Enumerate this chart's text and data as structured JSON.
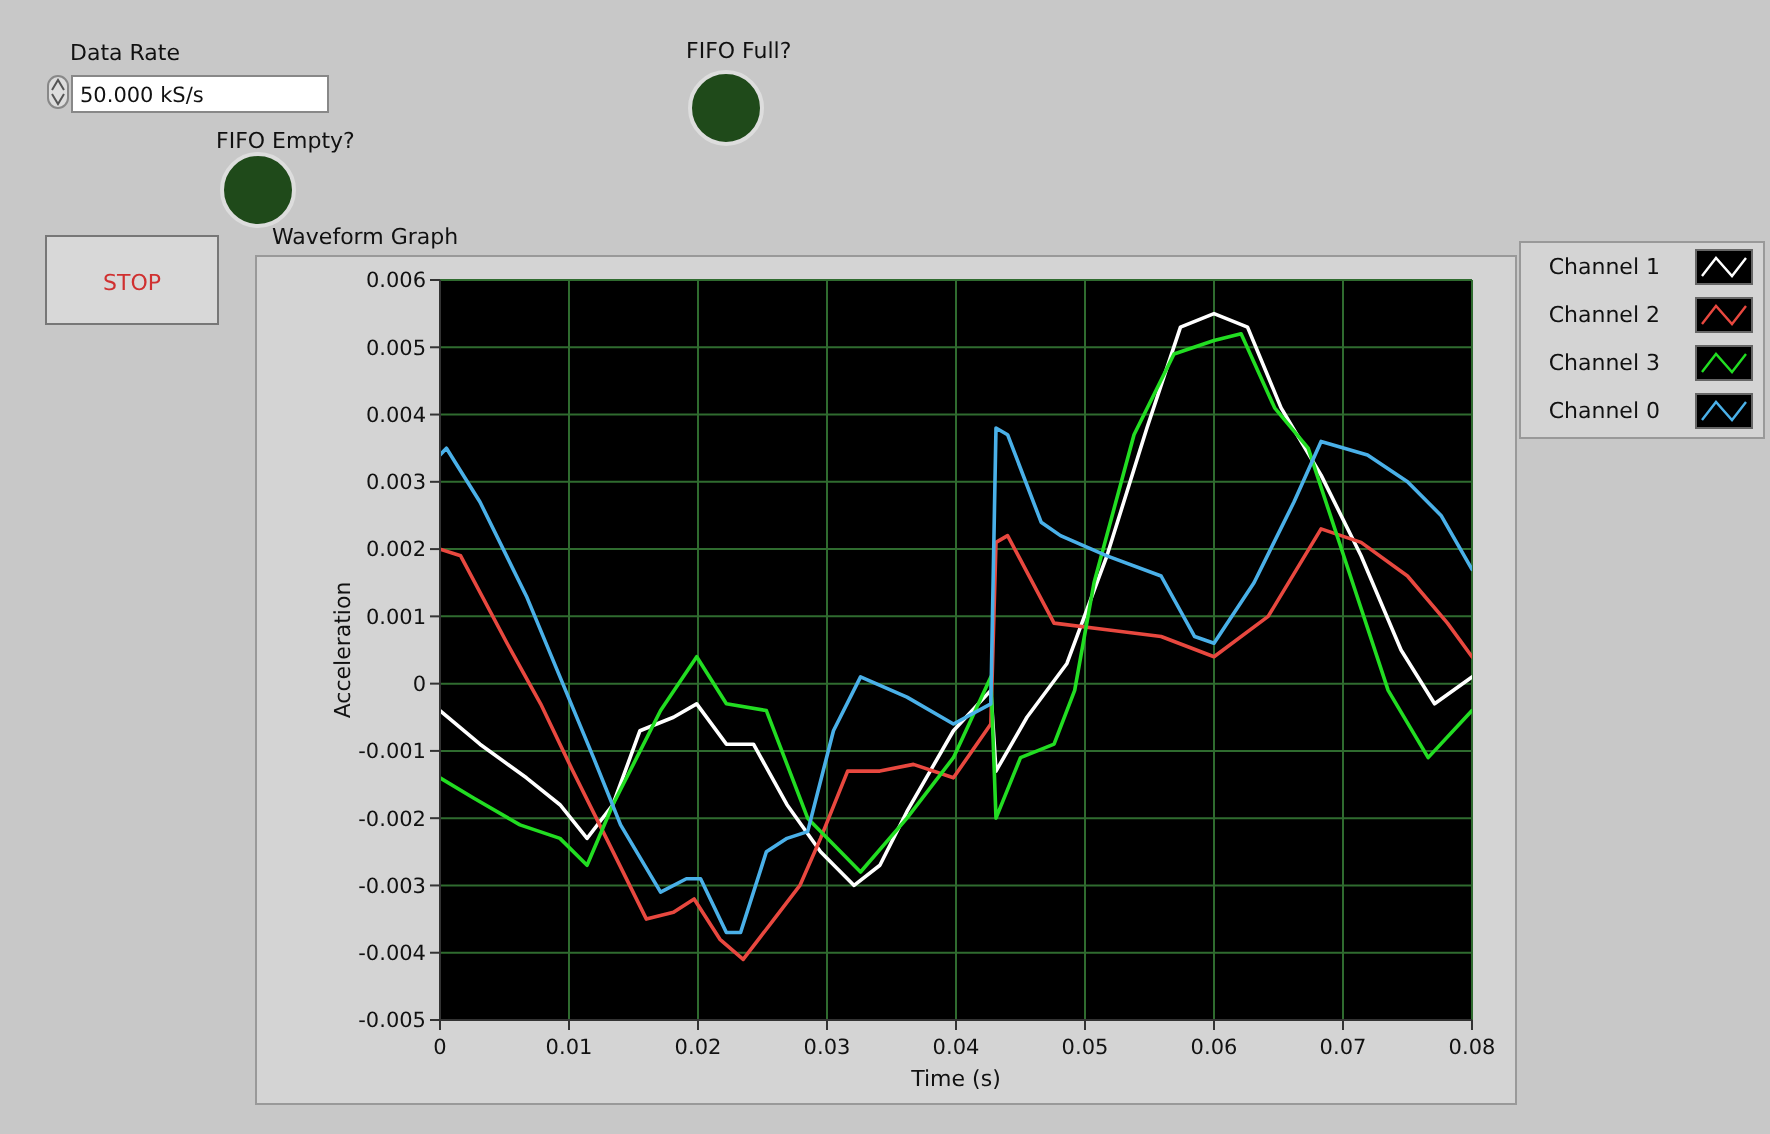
{
  "chart_data": {
    "type": "line",
    "title": "Waveform Graph",
    "xlabel": "Time (s)",
    "ylabel": "Acceleration",
    "annotations": [
      "Data Rate",
      "50.000 kS/s",
      "FIFO Full?",
      "FIFO Empty?",
      "STOP"
    ],
    "xlim": [
      0,
      0.08
    ],
    "xticks": [
      0,
      0.01,
      0.02,
      0.03,
      0.04,
      0.05,
      0.06,
      0.07,
      0.08
    ],
    "ylim": [
      -0.005,
      0.006
    ],
    "yticks": [
      -0.005,
      -0.004,
      -0.003,
      -0.002,
      -0.001,
      0,
      0.001,
      0.002,
      0.003,
      0.004,
      0.005,
      0.006
    ],
    "grid": true,
    "legend": "top right",
    "line_style": "solid",
    "series": [
      {
        "name": "Channel 1",
        "color": "#ffffff",
        "x": [
          0,
          0.0031,
          0.0067,
          0.0093,
          0.0114,
          0.0134,
          0.0155,
          0.0181,
          0.0199,
          0.0222,
          0.0243,
          0.0269,
          0.0295,
          0.0321,
          0.0341,
          0.0362,
          0.0398,
          0.0427,
          0.0431,
          0.0455,
          0.0486,
          0.0517,
          0.0548,
          0.0574,
          0.06,
          0.0626,
          0.0652,
          0.0683,
          0.0714,
          0.0745,
          0.0771,
          0.08
        ],
        "values": [
          -0.0004,
          -0.0009,
          -0.0014,
          -0.0018,
          -0.0023,
          -0.0018,
          -0.0007,
          -0.0005,
          -0.0003,
          -0.0009,
          -0.0009,
          -0.0018,
          -0.0025,
          -0.003,
          -0.0027,
          -0.0019,
          -0.0007,
          -0.0001,
          -0.0013,
          -0.0005,
          0.0003,
          0.0019,
          0.0038,
          0.0053,
          0.0055,
          0.0053,
          0.0041,
          0.0031,
          0.0019,
          0.0005,
          -0.0003,
          0.0001
        ]
      },
      {
        "name": "Channel 2",
        "color": "#e8483f",
        "x": [
          0,
          0.0016,
          0.0052,
          0.0078,
          0.0103,
          0.0129,
          0.016,
          0.0181,
          0.0197,
          0.0217,
          0.0235,
          0.0259,
          0.0279,
          0.0295,
          0.0316,
          0.0341,
          0.0367,
          0.0398,
          0.0427,
          0.0431,
          0.044,
          0.0476,
          0.0517,
          0.0559,
          0.06,
          0.0642,
          0.0683,
          0.0714,
          0.075,
          0.0781,
          0.08
        ],
        "values": [
          0.002,
          0.0019,
          0.0006,
          -0.0003,
          -0.0013,
          -0.0023,
          -0.0035,
          -0.0034,
          -0.0032,
          -0.0038,
          -0.0041,
          -0.0035,
          -0.003,
          -0.0023,
          -0.0013,
          -0.0013,
          -0.0012,
          -0.0014,
          -0.0006,
          0.0021,
          0.0022,
          0.0009,
          0.0008,
          0.0007,
          0.0004,
          0.001,
          0.0023,
          0.0021,
          0.0016,
          0.0009,
          0.0004
        ]
      },
      {
        "name": "Channel 3",
        "color": "#22dd22",
        "x": [
          0,
          0.0026,
          0.0062,
          0.0093,
          0.0114,
          0.0134,
          0.0171,
          0.0199,
          0.0222,
          0.0253,
          0.0285,
          0.0326,
          0.0362,
          0.0398,
          0.0427,
          0.0431,
          0.045,
          0.0476,
          0.0492,
          0.0507,
          0.0538,
          0.0569,
          0.06,
          0.0621,
          0.0647,
          0.0673,
          0.0704,
          0.0735,
          0.0766,
          0.08
        ],
        "values": [
          -0.0014,
          -0.0017,
          -0.0021,
          -0.0023,
          -0.0027,
          -0.0018,
          -0.0004,
          0.0004,
          -0.0003,
          -0.0004,
          -0.002,
          -0.0028,
          -0.002,
          -0.0011,
          0.0001,
          -0.002,
          -0.0011,
          -0.0009,
          -0.0001,
          0.0015,
          0.0037,
          0.0049,
          0.0051,
          0.0052,
          0.0041,
          0.0035,
          0.0017,
          -0.0001,
          -0.0011,
          -0.0004
        ]
      },
      {
        "name": "Channel 0",
        "color": "#4ab0e8",
        "x": [
          0,
          0.0005,
          0.0031,
          0.0067,
          0.0093,
          0.0119,
          0.014,
          0.0171,
          0.0191,
          0.0202,
          0.0222,
          0.0233,
          0.0253,
          0.0269,
          0.0285,
          0.0305,
          0.0326,
          0.0362,
          0.0398,
          0.0427,
          0.0431,
          0.044,
          0.0466,
          0.0481,
          0.0517,
          0.0559,
          0.0585,
          0.06,
          0.0631,
          0.0662,
          0.0683,
          0.0719,
          0.075,
          0.0776,
          0.08
        ],
        "values": [
          0.0034,
          0.0035,
          0.0027,
          0.0013,
          0.0001,
          -0.0011,
          -0.0021,
          -0.0031,
          -0.0029,
          -0.0029,
          -0.0037,
          -0.0037,
          -0.0025,
          -0.0023,
          -0.0022,
          -0.0007,
          0.0001,
          -0.0002,
          -0.0006,
          -0.0003,
          0.0038,
          0.0037,
          0.0024,
          0.0022,
          0.0019,
          0.0016,
          0.0007,
          0.0006,
          0.0015,
          0.0027,
          0.0036,
          0.0034,
          0.003,
          0.0025,
          0.0017
        ]
      }
    ]
  }
}
